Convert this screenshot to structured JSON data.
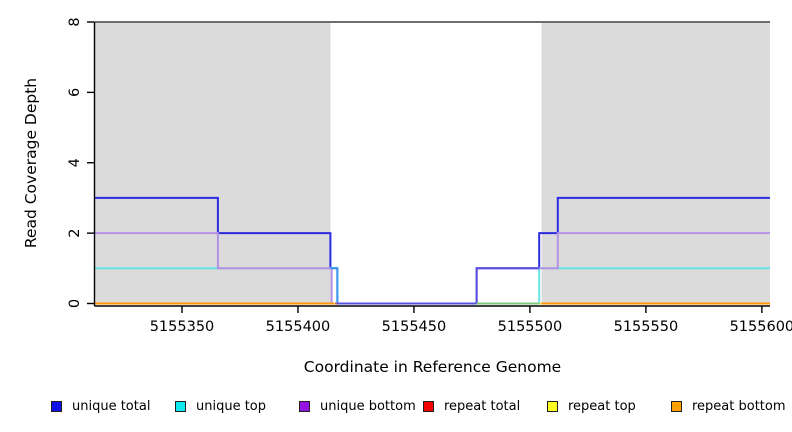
{
  "chart_data": {
    "type": "line",
    "subtype": "step-coverage-plot",
    "xlabel": "Coordinate in Reference Genome",
    "ylabel": "Read Coverage Depth",
    "xlim": [
      5155312.5,
      5155603.5
    ],
    "ylim": [
      0,
      8
    ],
    "x_ticks": [
      5155350,
      5155400,
      5155450,
      5155500,
      5155550,
      5155600
    ],
    "y_ticks": [
      0,
      2,
      4,
      6,
      8
    ],
    "grid": false,
    "background_color": "#ffffff",
    "shaded_regions": [
      {
        "name": "repeat-region-left",
        "x1": 5155312.5,
        "x2": 5155414,
        "color": "#dbdbdb"
      },
      {
        "name": "repeat-region-right",
        "x1": 5155505,
        "x2": 5155603.5,
        "color": "#dbdbdb"
      }
    ],
    "max_line": {
      "y": 8,
      "color": "#6e6e6e",
      "width": 2
    },
    "series": [
      {
        "id": "unique-total",
        "label": "unique total",
        "color": "#2b2be0",
        "paths": [
          [
            [
              5155312.5,
              3
            ],
            [
              5155365.5,
              3
            ],
            [
              5155365.5,
              2
            ],
            [
              5155414,
              2
            ],
            [
              5155414,
              1
            ],
            [
              5155417,
              1
            ],
            [
              5155417,
              0
            ],
            [
              5155477,
              0
            ],
            [
              5155477,
              1
            ],
            [
              5155504,
              1
            ],
            [
              5155504,
              2
            ],
            [
              5155512,
              2
            ],
            [
              5155512,
              3
            ],
            [
              5155603.5,
              3
            ]
          ]
        ]
      },
      {
        "id": "unique-top",
        "label": "unique top",
        "color": "#66e2e8",
        "paths": [
          [
            [
              5155312.5,
              1
            ],
            [
              5155417,
              1
            ],
            [
              5155417,
              0
            ],
            [
              5155504,
              0
            ],
            [
              5155504,
              1
            ],
            [
              5155603.5,
              1
            ]
          ]
        ]
      },
      {
        "id": "unique-bottom",
        "label": "unique bottom",
        "color": "#b591e4",
        "paths": [
          [
            [
              5155312.5,
              2
            ],
            [
              5155365.5,
              2
            ],
            [
              5155365.5,
              1
            ],
            [
              5155414.5,
              1
            ],
            [
              5155414.5,
              0
            ],
            [
              5155477,
              0
            ],
            [
              5155477,
              1
            ],
            [
              5155512,
              1
            ],
            [
              5155512,
              2
            ],
            [
              5155603.5,
              2
            ]
          ]
        ]
      },
      {
        "id": "repeat-total",
        "label": "repeat total",
        "color": "#e03a3a",
        "paths": [
          [
            [
              5155312.5,
              0
            ],
            [
              5155417,
              0
            ]
          ],
          [
            [
              5155505,
              0
            ],
            [
              5155603.5,
              0
            ]
          ]
        ]
      },
      {
        "id": "repeat-top",
        "label": "repeat top",
        "color": "#e8e060",
        "paths": [
          [
            [
              5155312.5,
              0
            ],
            [
              5155416,
              0
            ]
          ],
          [
            [
              5155477,
              0
            ],
            [
              5155603.5,
              0
            ]
          ]
        ]
      },
      {
        "id": "repeat-bottom",
        "label": "repeat bottom",
        "color": "#ff9406",
        "paths": [
          [
            [
              5155312.5,
              0
            ],
            [
              5155415.5,
              0
            ]
          ],
          [
            [
              5155505,
              0
            ],
            [
              5155603.5,
              0
            ]
          ]
        ]
      }
    ],
    "blend_overlays": [
      {
        "name": "blue-cyan-blend",
        "color": "#3f97ef",
        "points": [
          [
            5155414,
            1
          ],
          [
            5155417,
            1
          ],
          [
            5155417,
            0
          ]
        ]
      },
      {
        "name": "blue-purple-blend",
        "color": "#5a50e0",
        "points": [
          [
            5155417,
            0
          ],
          [
            5155477,
            0
          ],
          [
            5155477,
            1
          ],
          [
            5155504,
            1
          ]
        ]
      },
      {
        "name": "cyan-yellow-blend",
        "color": "#7cc87c",
        "points": [
          [
            5155477,
            0
          ],
          [
            5155504,
            0
          ]
        ]
      }
    ],
    "legend": [
      {
        "label": "unique total",
        "color": "#1010e8"
      },
      {
        "label": "unique top",
        "color": "#10e8f0"
      },
      {
        "label": "unique bottom",
        "color": "#9612e0"
      },
      {
        "label": "repeat total",
        "color": "#f00000"
      },
      {
        "label": "repeat top",
        "color": "#ffff20"
      },
      {
        "label": "repeat bottom",
        "color": "#ffa000"
      }
    ],
    "axis_color": "#000000",
    "tick_label_color": "#000000"
  }
}
